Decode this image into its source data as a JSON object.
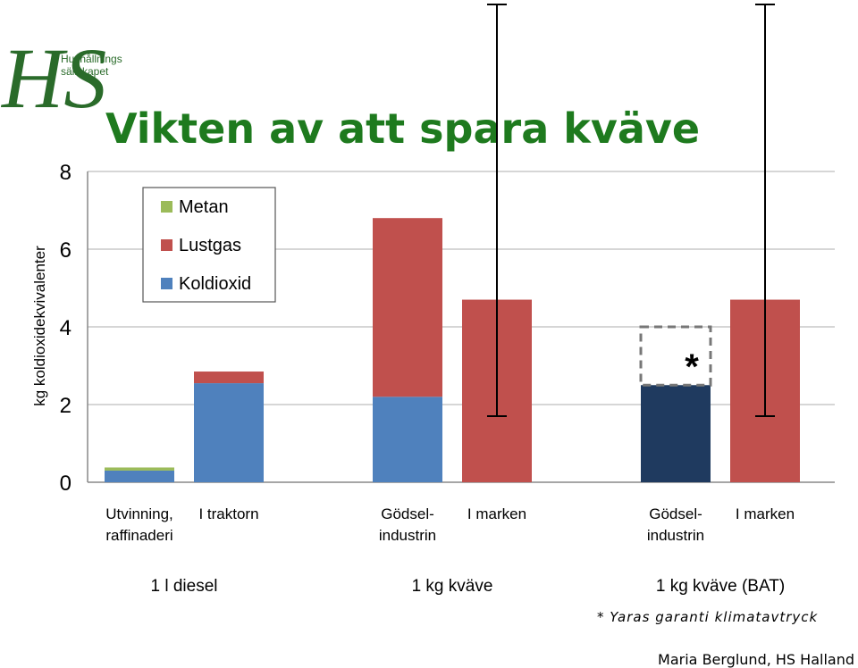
{
  "logo": {
    "letters": "HS",
    "name_line1": "Hushållnings",
    "name_line2": "sällskapet"
  },
  "colors": {
    "title": "#1e7a1e",
    "metan": "#9bbb59",
    "lustgas": "#c0504d",
    "koldioxid": "#4f81bd",
    "bat": "#1f3a5f",
    "logo": "#2a6b2a"
  },
  "chart_data": {
    "type": "bar",
    "title": "Vikten av att spara kväve",
    "ylabel": "kg koldioxidekvivalenter",
    "ylim": [
      0,
      8
    ],
    "yticks": [
      "0",
      "2",
      "4",
      "6",
      "8"
    ],
    "grid": true,
    "legend_position": "top-left",
    "categories": [
      [
        "Utvinning,",
        "raffinaderi"
      ],
      [
        "I traktorn"
      ],
      [
        "Gödsel-",
        "industrin"
      ],
      [
        "I marken"
      ],
      [
        "Gödsel-",
        "industrin"
      ],
      [
        "I marken"
      ]
    ],
    "groups": [
      "1 l diesel",
      "1 kg kväve",
      "1 kg kväve (BAT)"
    ],
    "series": [
      {
        "name": "Koldioxid",
        "values": [
          0.3,
          2.55,
          2.2,
          0,
          2.5,
          0
        ]
      },
      {
        "name": "Lustgas",
        "values": [
          0,
          0.3,
          4.6,
          4.7,
          0,
          4.7
        ]
      },
      {
        "name": "Metan",
        "values": [
          0.08,
          0,
          0,
          0,
          0,
          0
        ]
      }
    ],
    "error_bars": [
      {
        "bar": 3,
        "low": 1.7,
        "high": 12.3
      },
      {
        "bar": 5,
        "low": 1.7,
        "high": 12.3
      }
    ],
    "annotation": {
      "bar": 4,
      "dashed_low": 2.5,
      "dashed_high": 4.0,
      "marker": "*"
    }
  },
  "footnote": "* Yaras garanti klimatavtryck",
  "credit": "Maria Berglund, HS Halland"
}
